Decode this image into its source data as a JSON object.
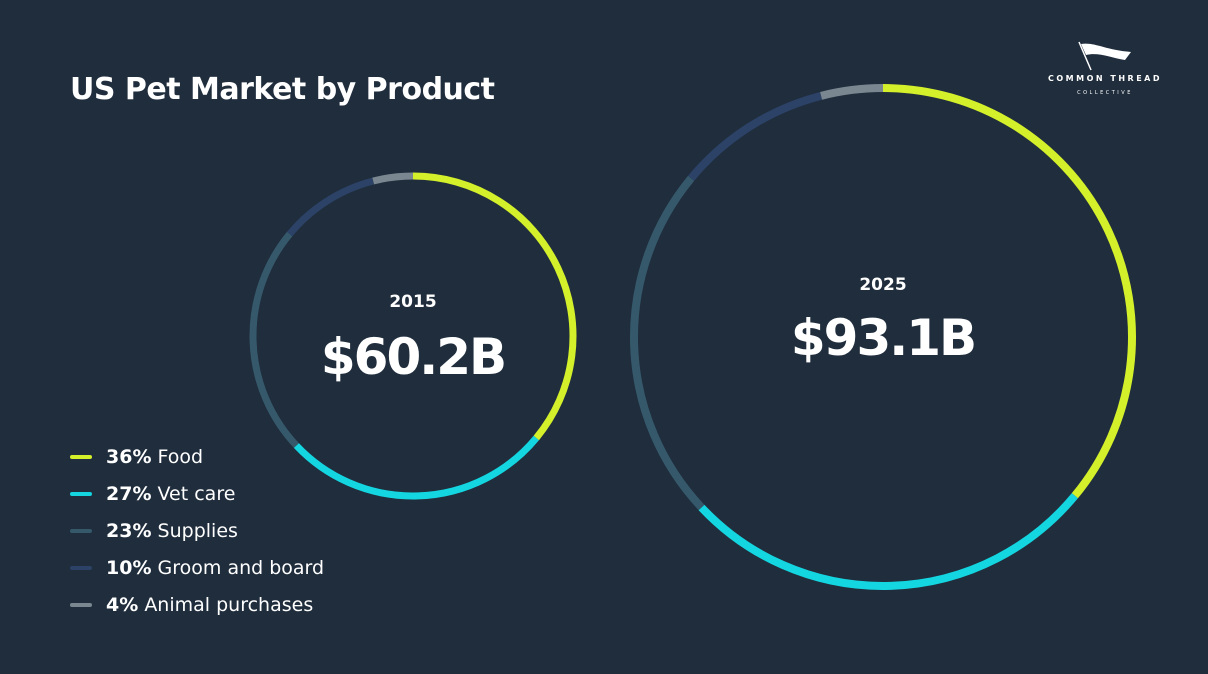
{
  "title": "US Pet Market by Product",
  "logo": {
    "name": "COMMON THREAD",
    "sub": "COLLECTIVE"
  },
  "colors": {
    "background": "#1f2d3d",
    "food": "#d4f02a",
    "vet_care": "#14d6e0",
    "supplies": "#35596b",
    "groom_board": "#2c4266",
    "animal_purchases": "#7b8790"
  },
  "chart_data": {
    "type": "donut",
    "title": "US Pet Market by Product",
    "categories": [
      "Food",
      "Vet care",
      "Supplies",
      "Groom and board",
      "Animal purchases"
    ],
    "shares_percent": [
      36,
      27,
      23,
      10,
      4
    ],
    "charts": [
      {
        "year": "2015",
        "total_label": "$60.2B",
        "total_billions": 60.2
      },
      {
        "year": "2025",
        "total_label": "$93.1B",
        "total_billions": 93.1
      }
    ]
  },
  "legend": [
    {
      "pct": "36%",
      "label": "Food",
      "color_key": "food"
    },
    {
      "pct": "27%",
      "label": "Vet care",
      "color_key": "vet_care"
    },
    {
      "pct": "23%",
      "label": "Supplies",
      "color_key": "supplies"
    },
    {
      "pct": "10%",
      "label": "Groom and board",
      "color_key": "groom_board"
    },
    {
      "pct": "4%",
      "label": "Animal purchases",
      "color_key": "animal_purchases"
    }
  ]
}
